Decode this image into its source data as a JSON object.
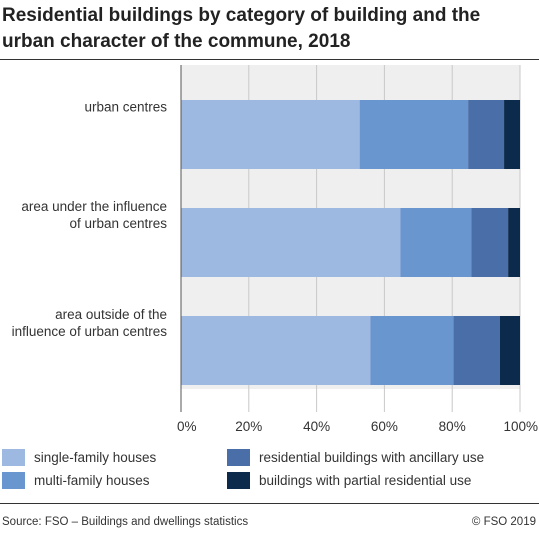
{
  "title": "Residential buildings by category of building and the urban character of the commune, 2018",
  "source": "Source: FSO – Buildings and dwellings statistics",
  "copyright": "© FSO 2019",
  "colors": {
    "band": "#efefef",
    "single_family": "#9db8e1",
    "multi_family": "#6a96d0",
    "ancillary": "#4a6ea8",
    "partial": "#0b2a4c"
  },
  "chart_data": {
    "type": "bar",
    "orientation": "horizontal",
    "stacked": true,
    "categories": [
      "urban centres",
      "area under the influence of urban centres",
      "area outside of the influence of urban centres"
    ],
    "category_lines": [
      [
        "urban centres"
      ],
      [
        "area under the influence",
        "of urban centres"
      ],
      [
        "area outside of the",
        "influence of urban centres"
      ]
    ],
    "series": [
      {
        "name": "single-family houses",
        "color": "#9db8e1",
        "values": [
          52.7,
          64.7,
          55.9
        ]
      },
      {
        "name": "multi-family houses",
        "color": "#6a96d0",
        "values": [
          32.0,
          21.0,
          24.5
        ]
      },
      {
        "name": "residential buildings with ancillary use",
        "color": "#4a6ea8",
        "values": [
          10.6,
          10.8,
          13.7
        ]
      },
      {
        "name": "buildings with partial residential use",
        "color": "#0b2a4c",
        "values": [
          4.7,
          3.5,
          5.9
        ]
      }
    ],
    "xlim": [
      0,
      100
    ],
    "xticks": [
      "0%",
      "20%",
      "40%",
      "60%",
      "80%",
      "100%"
    ],
    "grid": true,
    "legend_position": "bottom"
  }
}
